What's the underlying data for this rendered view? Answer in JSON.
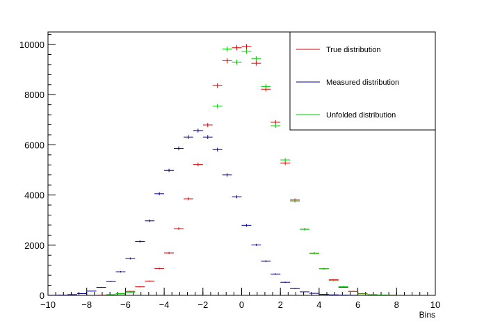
{
  "chart_data": {
    "type": "scatter",
    "title": "",
    "xlabel": "Bins",
    "ylabel": "",
    "xlim": [
      -10,
      10
    ],
    "ylim": [
      0,
      10500
    ],
    "bin_width": 0.5,
    "x_ticks": [
      -10,
      -8,
      -6,
      -4,
      -2,
      0,
      2,
      4,
      6,
      8,
      10
    ],
    "y_ticks": [
      0,
      2000,
      4000,
      6000,
      8000,
      10000
    ],
    "x_tick_labels": [
      "−10",
      "−8",
      "−6",
      "−4",
      "−2",
      "0",
      "2",
      "4",
      "6",
      "8",
      "10"
    ],
    "y_tick_labels": [
      "0",
      "2000",
      "4000",
      "6000",
      "8000",
      "10000"
    ],
    "grid": false,
    "legend_position": "top-right",
    "x": [
      -9.75,
      -9.25,
      -8.75,
      -8.25,
      -7.75,
      -7.25,
      -6.75,
      -6.25,
      -5.75,
      -5.25,
      -4.75,
      -4.25,
      -3.75,
      -3.25,
      -2.75,
      -2.25,
      -1.75,
      -1.25,
      -0.75,
      -0.25,
      0.25,
      0.75,
      1.25,
      1.75,
      2.25,
      2.75,
      3.25,
      3.75,
      4.25,
      4.75,
      5.25,
      5.75,
      6.25,
      6.75,
      7.25,
      7.75,
      8.25,
      8.75,
      9.25,
      9.75
    ],
    "series": [
      {
        "name": "True distribution",
        "color": "#d40000",
        "values": [
          0,
          0,
          0,
          0,
          0,
          5,
          25,
          60,
          160,
          340,
          570,
          1070,
          1690,
          2660,
          3850,
          5220,
          6790,
          8360,
          9350,
          9870,
          9920,
          9250,
          8220,
          6900,
          5270,
          3800,
          2640,
          1680,
          1060,
          620,
          320,
          160,
          70,
          25,
          10,
          5,
          0,
          0,
          0,
          0
        ]
      },
      {
        "name": "Measured distribution",
        "color": "#00008b",
        "values": [
          5,
          10,
          30,
          70,
          170,
          320,
          550,
          940,
          1470,
          2150,
          2970,
          4050,
          4980,
          5860,
          6310,
          6570,
          6310,
          5810,
          4800,
          3930,
          2790,
          2010,
          1360,
          850,
          520,
          270,
          140,
          80,
          40,
          20,
          10,
          5,
          0,
          0,
          0,
          0,
          0,
          0,
          0,
          0
        ]
      },
      {
        "name": "Unfolded distribution",
        "color": "#00c800",
        "values": [
          0,
          0,
          0,
          0,
          0,
          0,
          20,
          70,
          120,
          0,
          0,
          0,
          0,
          0,
          0,
          0,
          0,
          7540,
          9820,
          9300,
          9730,
          9440,
          8330,
          6760,
          5400,
          3760,
          2630,
          1680,
          1060,
          590,
          350,
          150,
          60,
          30,
          15,
          5,
          0,
          0,
          0,
          0
        ]
      }
    ]
  }
}
